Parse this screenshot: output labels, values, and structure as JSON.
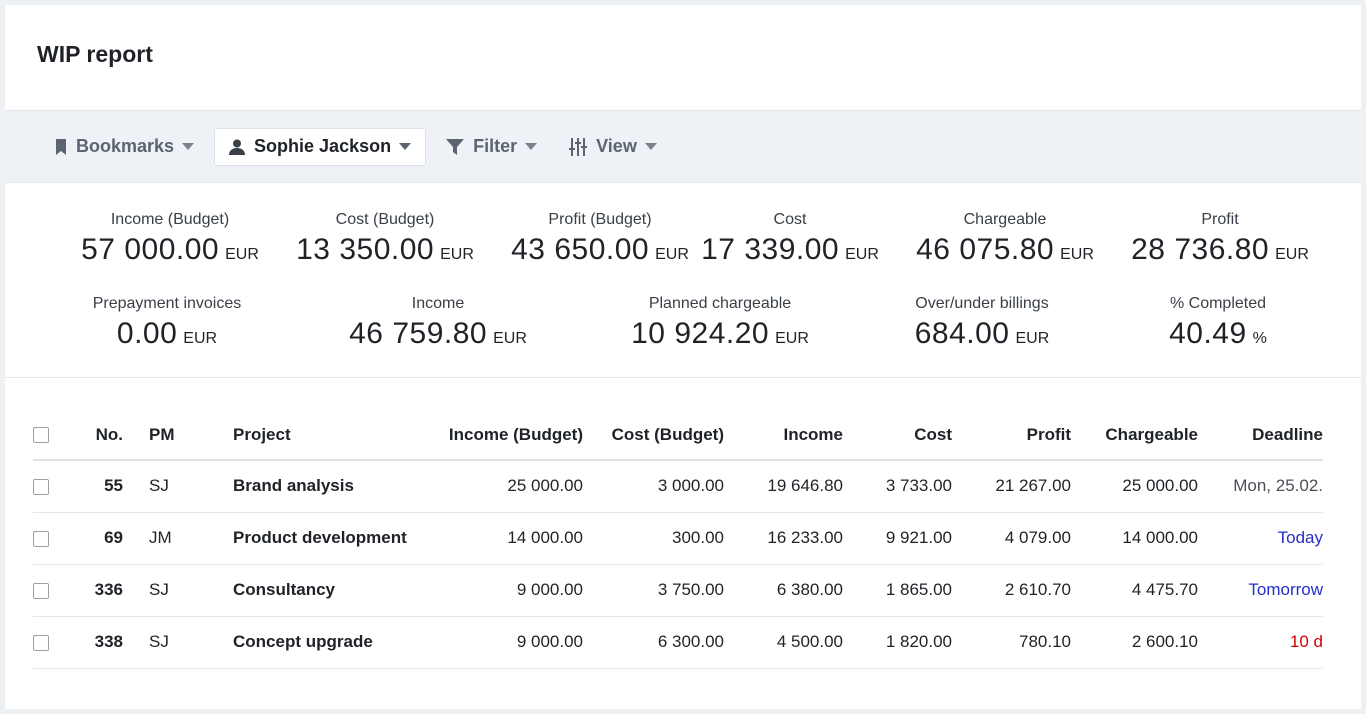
{
  "header": {
    "title": "WIP report"
  },
  "toolbar": {
    "bookmarks_label": "Bookmarks",
    "user_label": "Sophie Jackson",
    "filter_label": "Filter",
    "view_label": "View"
  },
  "summary": {
    "income_budget": {
      "label": "Income (Budget)",
      "value": "57 000.00",
      "unit": "EUR"
    },
    "cost_budget": {
      "label": "Cost (Budget)",
      "value": "13 350.00",
      "unit": "EUR"
    },
    "profit_budget": {
      "label": "Profit (Budget)",
      "value": "43 650.00",
      "unit": "EUR"
    },
    "cost": {
      "label": "Cost",
      "value": "17 339.00",
      "unit": "EUR"
    },
    "chargeable": {
      "label": "Chargeable",
      "value": "46 075.80",
      "unit": "EUR"
    },
    "profit": {
      "label": "Profit",
      "value": "28 736.80",
      "unit": "EUR"
    },
    "prepayment": {
      "label": "Prepayment invoices",
      "value": "0.00",
      "unit": "EUR"
    },
    "income": {
      "label": "Income",
      "value": "46 759.80",
      "unit": "EUR"
    },
    "planned_chargeable": {
      "label": "Planned chargeable",
      "value": "10 924.20",
      "unit": "EUR"
    },
    "over_under": {
      "label": "Over/under billings",
      "value": "684.00",
      "unit": "EUR"
    },
    "completed": {
      "label": "% Completed",
      "value": "40.49",
      "unit": "%"
    }
  },
  "table": {
    "headers": {
      "no": "No.",
      "pm": "PM",
      "project": "Project",
      "income_budget": "Income (Budget)",
      "cost_budget": "Cost (Budget)",
      "income": "Income",
      "cost": "Cost",
      "profit": "Profit",
      "chargeable": "Chargeable",
      "deadline": "Deadline"
    },
    "rows": [
      {
        "no": "55",
        "pm": "SJ",
        "project": "Brand analysis",
        "income_budget": "25 000.00",
        "cost_budget": "3 000.00",
        "income": "19 646.80",
        "cost": "3 733.00",
        "profit": "21 267.00",
        "chargeable": "25 000.00",
        "deadline": "Mon, 25.02."
      },
      {
        "no": "69",
        "pm": "JM",
        "project": "Product development",
        "income_budget": "14 000.00",
        "cost_budget": "300.00",
        "income": "16 233.00",
        "cost": "9 921.00",
        "profit": "4 079.00",
        "chargeable": "14 000.00",
        "deadline": "Today"
      },
      {
        "no": "336",
        "pm": "SJ",
        "project": "Consultancy",
        "income_budget": "9 000.00",
        "cost_budget": "3 750.00",
        "income": "6 380.00",
        "cost": "1 865.00",
        "profit": "2 610.70",
        "chargeable": "4 475.70",
        "deadline": "Tomorrow"
      },
      {
        "no": "338",
        "pm": "SJ",
        "project": "Concept upgrade",
        "income_budget": "9 000.00",
        "cost_budget": "6 300.00",
        "income": "4 500.00",
        "cost": "1 820.00",
        "profit": "780.10",
        "chargeable": "2 600.10",
        "deadline": "10 d"
      }
    ]
  },
  "colors": {
    "deadline_today": "#2430c8",
    "deadline_overdue": "#d40000",
    "toolbar_bg": "#eef2f6"
  }
}
